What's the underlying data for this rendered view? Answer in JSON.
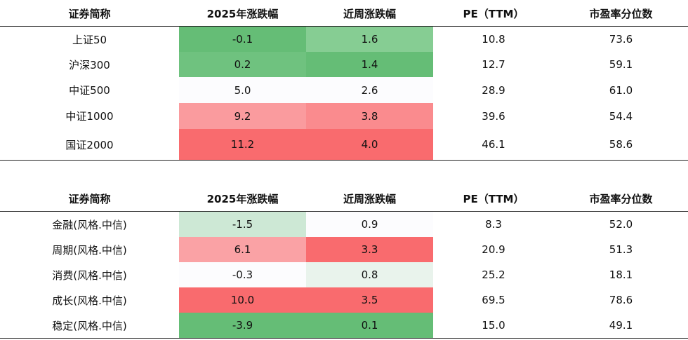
{
  "tables": [
    {
      "headers": [
        "证券简称",
        "2025年涨跌幅",
        "近周涨跌幅",
        "PE（TTM）",
        "市盈率分位数"
      ],
      "rows": [
        {
          "name": "上证50",
          "ytd": "-0.1",
          "week": "1.6",
          "pe": "10.8",
          "pct": "73.6"
        },
        {
          "name": "沪深300",
          "ytd": "0.2",
          "week": "1.4",
          "pe": "12.7",
          "pct": "59.1"
        },
        {
          "name": "中证500",
          "ytd": "5.0",
          "week": "2.6",
          "pe": "28.9",
          "pct": "61.0"
        },
        {
          "name": "中证1000",
          "ytd": "9.2",
          "week": "3.8",
          "pe": "39.6",
          "pct": "54.4"
        },
        {
          "name": "国证2000",
          "ytd": "11.2",
          "week": "4.0",
          "pe": "46.1",
          "pct": "58.6"
        }
      ],
      "colors": {
        "ytd": [
          "#65bd76",
          "#6fc27f",
          "#fcfcfe",
          "#fa9b9e",
          "#f96b6e"
        ],
        "week": [
          "#86cd93",
          "#65bd76",
          "#fcfcfe",
          "#fa8b8e",
          "#f96b6e"
        ]
      }
    },
    {
      "headers": [
        "证券简称",
        "2025年涨跌幅",
        "近周涨跌幅",
        "PE（TTM）",
        "市盈率分位数"
      ],
      "rows": [
        {
          "name": "金融(风格.中信)",
          "ytd": "-1.5",
          "week": "0.9",
          "pe": "8.3",
          "pct": "52.0"
        },
        {
          "name": "周期(风格.中信)",
          "ytd": "6.1",
          "week": "3.3",
          "pe": "20.9",
          "pct": "51.3"
        },
        {
          "name": "消费(风格.中信)",
          "ytd": "-0.3",
          "week": "0.8",
          "pe": "25.2",
          "pct": "18.1"
        },
        {
          "name": "成长(风格.中信)",
          "ytd": "10.0",
          "week": "3.5",
          "pe": "69.5",
          "pct": "78.6"
        },
        {
          "name": "稳定(风格.中信)",
          "ytd": "-3.9",
          "week": "0.1",
          "pe": "15.0",
          "pct": "49.1"
        }
      ],
      "colors": {
        "ytd": [
          "#cde8d5",
          "#faa2a5",
          "#fcfcfe",
          "#f96b6e",
          "#65bd76"
        ],
        "week": [
          "#fcfcfe",
          "#f96b6e",
          "#e9f3ec",
          "#f96b6e",
          "#65bd76"
        ]
      }
    }
  ]
}
